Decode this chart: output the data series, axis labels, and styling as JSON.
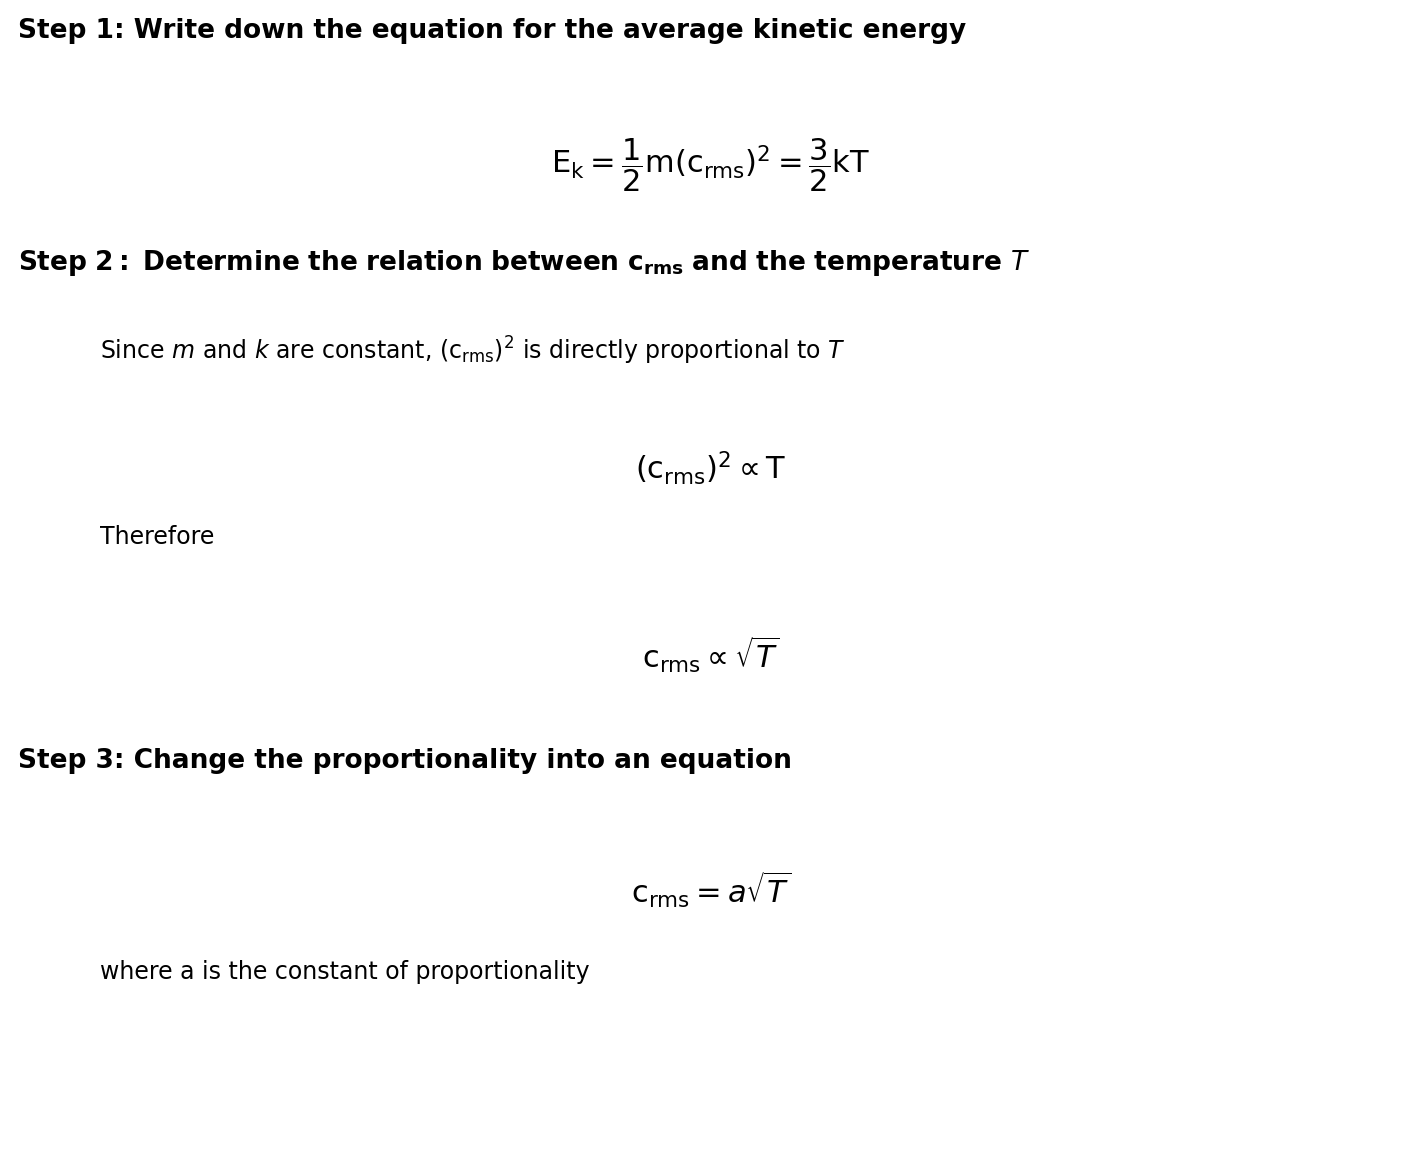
{
  "bg_color": "#ffffff",
  "text_color": "#000000",
  "fig_width": 14.22,
  "fig_height": 11.52,
  "dpi": 100,
  "step1_heading": "Step 1: Write down the equation for the average kinetic energy",
  "step1_eq": "$\\mathrm{E_k} = \\dfrac{1}{2}\\mathrm{m(c_{rms})^2} = \\dfrac{3}{2}\\mathrm{kT}$",
  "step2_heading_plain": "Step 2: Determine the relation between ",
  "step2_heading_crms": "$\\mathbf{c_{rms}}$",
  "step2_heading_end": " and the temperature ",
  "step2_heading_T": "$\\mathit{T}$",
  "step2_since": "Since $m$ and $k$ are constant, $(\\mathrm{c_{rms}})^2$ is directly proportional to $T$",
  "step2_prop": "$(\\mathrm{c_{rms}})^2 \\propto \\mathrm{T}$",
  "step2_therefore": "Therefore",
  "step2_sqrt": "$\\mathrm{c_{rms}} \\propto \\sqrt{T}$",
  "step3_heading": "Step 3: Change the proportionality into an equation",
  "step3_eq": "$\\mathrm{c_{rms}} = a\\sqrt{T}$",
  "step3_where": "where a is the constant of proportionality",
  "heading_fontsize": 19,
  "body_fontsize": 17,
  "eq_fontsize": 22
}
